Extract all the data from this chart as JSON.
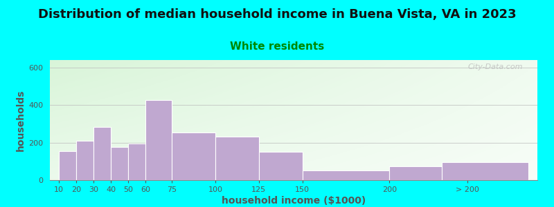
{
  "title": "Distribution of median household income in Buena Vista, VA in 2023",
  "subtitle": "White residents",
  "xlabel": "household income ($1000)",
  "ylabel": "households",
  "bg_color": "#00FFFF",
  "bar_color": "#C0A8D0",
  "bar_edge_color": "#FFFFFF",
  "categories": [
    "10",
    "20",
    "30",
    "40",
    "50",
    "60",
    "75",
    "100",
    "125",
    "150",
    "200",
    "> 200"
  ],
  "values": [
    155,
    210,
    285,
    175,
    195,
    425,
    255,
    230,
    150,
    50,
    75,
    95
  ],
  "ylim": [
    0,
    640
  ],
  "yticks": [
    0,
    200,
    400,
    600
  ],
  "title_fontsize": 13,
  "subtitle_fontsize": 11,
  "subtitle_color": "#008800",
  "axis_label_fontsize": 10,
  "tick_fontsize": 8,
  "watermark": "City-Data.com",
  "x_positions": [
    10,
    20,
    30,
    40,
    50,
    60,
    75,
    100,
    125,
    150,
    200,
    230
  ],
  "bar_widths": [
    10,
    10,
    10,
    10,
    10,
    15,
    25,
    25,
    25,
    50,
    30,
    50
  ],
  "x_tick_pos": [
    10,
    20,
    30,
    40,
    50,
    60,
    75,
    100,
    125,
    150,
    200,
    245
  ],
  "xlim": [
    5,
    285
  ]
}
